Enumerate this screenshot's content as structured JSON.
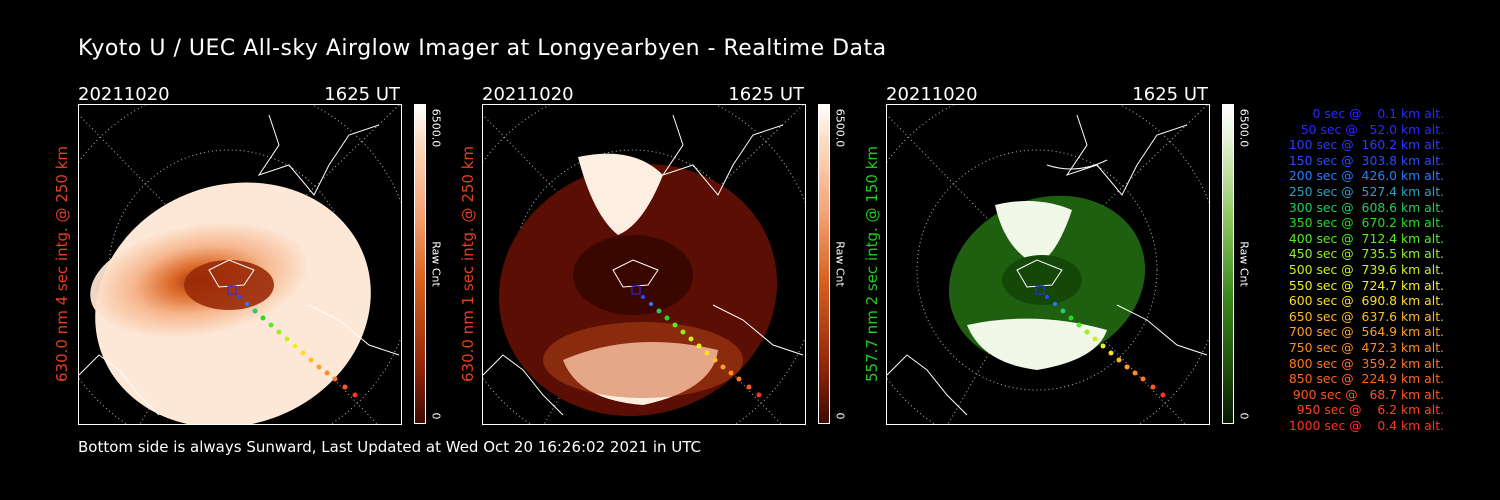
{
  "title": "Kyoto U / UEC All-sky Airglow Imager at Longyearbyen - Realtime Data",
  "footer": "Bottom side is always Sunward, Last Updated at Wed Oct 20 16:26:02 2021 in UTC",
  "panels": [
    {
      "date": "20211020",
      "time": "1625 UT",
      "ylabel": "630.0 nm  4 sec intg. @ 250 km",
      "ylabel_color": "#e4401c",
      "cbar_max": "6500.0",
      "cbar_label": "Raw Cnt",
      "cbar_min": "0",
      "cmap": "red-light"
    },
    {
      "date": "20211020",
      "time": "1625 UT",
      "ylabel": "630.0 nm  1 sec intg. @ 250 km",
      "ylabel_color": "#e4401c",
      "cbar_max": "6500.0",
      "cbar_label": "Raw Cnt",
      "cbar_min": "0",
      "cmap": "red-dark"
    },
    {
      "date": "20211020",
      "time": "1625 UT",
      "ylabel": "557.7 nm  2 sec intg. @ 150 km",
      "ylabel_color": "#22cc22",
      "cbar_max": "6500.0",
      "cbar_label": "Raw Cnt",
      "cbar_min": "0",
      "cmap": "green"
    }
  ],
  "legend": [
    {
      "text": "0 sec @    0.1 km alt.",
      "color": "#2a2aff"
    },
    {
      "text": "50 sec @   52.0 km alt.",
      "color": "#2a2aff"
    },
    {
      "text": "100 sec @  160.2 km alt.",
      "color": "#2a3cff"
    },
    {
      "text": "150 sec @  303.8 km alt.",
      "color": "#2a4cff"
    },
    {
      "text": "200 sec @  426.0 km alt.",
      "color": "#2a7cff"
    },
    {
      "text": "250 sec @  527.4 km alt.",
      "color": "#2aa0c0"
    },
    {
      "text": "300 sec @  608.6 km alt.",
      "color": "#22cc66"
    },
    {
      "text": "350 sec @  670.2 km alt.",
      "color": "#22dd22"
    },
    {
      "text": "400 sec @  712.4 km alt.",
      "color": "#55ee22"
    },
    {
      "text": "450 sec @  735.5 km alt.",
      "color": "#99ee22"
    },
    {
      "text": "500 sec @  739.6 km alt.",
      "color": "#ccee22"
    },
    {
      "text": "550 sec @  724.7 km alt.",
      "color": "#eeee22"
    },
    {
      "text": "600 sec @  690.8 km alt.",
      "color": "#ffdd22"
    },
    {
      "text": "650 sec @  637.6 km alt.",
      "color": "#ffbb22"
    },
    {
      "text": "700 sec @  564.9 km alt.",
      "color": "#ffa022"
    },
    {
      "text": "750 sec @  472.3 km alt.",
      "color": "#ff8c22"
    },
    {
      "text": "800 sec @  359.2 km alt.",
      "color": "#ff7722"
    },
    {
      "text": "850 sec @  224.9 km alt.",
      "color": "#ff6622"
    },
    {
      "text": "900 sec @   68.7 km alt.",
      "color": "#ff5522"
    },
    {
      "text": "950 sec @    6.2 km alt.",
      "color": "#ff4422"
    },
    {
      "text": "1000 sec @    0.4 km alt.",
      "color": "#ff3322"
    }
  ]
}
